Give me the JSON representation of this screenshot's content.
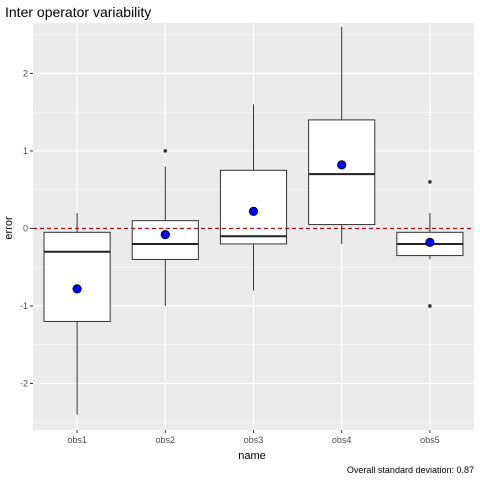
{
  "chart_data": {
    "type": "boxplot",
    "title": "Inter operator variability",
    "xlabel": "name",
    "ylabel": "error",
    "caption": "Overall standard deviation: 0.87",
    "categories": [
      "obs1",
      "obs2",
      "obs3",
      "obs4",
      "obs5"
    ],
    "ylim": [
      -2.6,
      2.65
    ],
    "yticks": [
      -2,
      -1,
      0,
      1,
      2
    ],
    "reference_line": {
      "y": 0,
      "style": "dashed",
      "color": "#cc0000"
    },
    "boxes": [
      {
        "name": "obs1",
        "min": -2.4,
        "q1": -1.2,
        "median": -0.3,
        "q3": -0.05,
        "max": 0.2,
        "mean": -0.78,
        "outliers": []
      },
      {
        "name": "obs2",
        "min": -1.0,
        "q1": -0.4,
        "median": -0.2,
        "q3": 0.1,
        "max": 0.8,
        "mean": -0.08,
        "outliers": [
          1.0
        ]
      },
      {
        "name": "obs3",
        "min": -0.8,
        "q1": -0.2,
        "median": -0.1,
        "q3": 0.75,
        "max": 1.6,
        "mean": 0.22,
        "outliers": []
      },
      {
        "name": "obs4",
        "min": -0.2,
        "q1": 0.05,
        "median": 0.7,
        "q3": 1.4,
        "max": 2.6,
        "mean": 0.82,
        "outliers": []
      },
      {
        "name": "obs5",
        "min": -0.4,
        "q1": -0.35,
        "median": -0.2,
        "q3": -0.05,
        "max": 0.2,
        "mean": -0.18,
        "outliers": [
          0.6,
          -1.0
        ]
      }
    ],
    "colors": {
      "panel": "#ebebeb",
      "grid_major": "#ffffff",
      "box_fill": "#ffffff",
      "box_line": "#333333",
      "mean_point": "#0000ff",
      "outlier": "#333333"
    },
    "grid": true,
    "legend": "none"
  }
}
